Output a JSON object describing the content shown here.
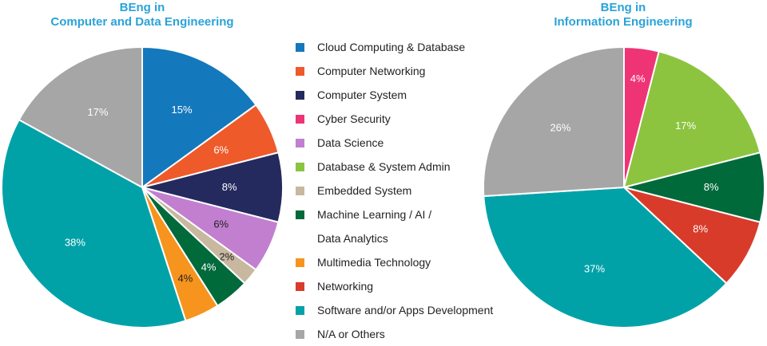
{
  "colors": {
    "cloud": "#1478bd",
    "networking_comp": "#ef5a2a",
    "system": "#252a5e",
    "cyber": "#ef3476",
    "datasci": "#c27fd0",
    "dbadmin": "#8cc43f",
    "embedded": "#c8b8a0",
    "ml": "#006a3b",
    "multimedia": "#f7941d",
    "networking": "#d93b2b",
    "software": "#00a2a8",
    "other": "#a6a6a6",
    "title": "#29a3d9"
  },
  "legend": [
    {
      "label": "Cloud Computing & Database",
      "color_key": "cloud"
    },
    {
      "label": "Computer Networking",
      "color_key": "networking_comp"
    },
    {
      "label": "Computer System",
      "color_key": "system"
    },
    {
      "label": "Cyber Security",
      "color_key": "cyber"
    },
    {
      "label": "Data Science",
      "color_key": "datasci"
    },
    {
      "label": "Database & System Admin",
      "color_key": "dbadmin"
    },
    {
      "label": "Embedded System",
      "color_key": "embedded"
    },
    {
      "label": "Machine Learning / AI /",
      "color_key": "ml"
    },
    {
      "label": "Data Analytics",
      "color_key": "ml",
      "continuation": true
    },
    {
      "label": "Multimedia Technology",
      "color_key": "multimedia"
    },
    {
      "label": "Networking",
      "color_key": "networking"
    },
    {
      "label": "Software and/or Apps Development",
      "color_key": "software"
    },
    {
      "label": "N/A or Others",
      "color_key": "other"
    }
  ],
  "chart_data": [
    {
      "type": "pie",
      "title": "BEng in Computer and Data Engineering",
      "title_lines": [
        "BEng in",
        "Computer and Data Engineering"
      ],
      "slices": [
        {
          "category": "Cloud Computing & Database",
          "value": 15,
          "label": "15%",
          "color_key": "cloud",
          "label_color": "#ffffff"
        },
        {
          "category": "Computer Networking",
          "value": 6,
          "label": "6%",
          "color_key": "networking_comp",
          "label_color": "#ffffff"
        },
        {
          "category": "Computer System",
          "value": 8,
          "label": "8%",
          "color_key": "system",
          "label_color": "#ffffff"
        },
        {
          "category": "Data Science",
          "value": 6,
          "label": "6%",
          "color_key": "datasci",
          "label_color": "#222222"
        },
        {
          "category": "Embedded System",
          "value": 2,
          "label": "2%",
          "color_key": "embedded",
          "label_color": "#222222"
        },
        {
          "category": "Machine Learning / AI / Data Analytics",
          "value": 4,
          "label": "4%",
          "color_key": "ml",
          "label_color": "#ffffff"
        },
        {
          "category": "Multimedia Technology",
          "value": 4,
          "label": "4%",
          "color_key": "multimedia",
          "label_color": "#222222"
        },
        {
          "category": "Software and/or Apps Development",
          "value": 38,
          "label": "38%",
          "color_key": "software",
          "label_color": "#ffffff"
        },
        {
          "category": "N/A or Others",
          "value": 17,
          "label": "17%",
          "color_key": "other",
          "label_color": "#ffffff"
        }
      ]
    },
    {
      "type": "pie",
      "title": "BEng in Information Engineering",
      "title_lines": [
        "BEng in",
        "Information Engineering"
      ],
      "slices": [
        {
          "category": "Cyber Security",
          "value": 4,
          "label": "4%",
          "color_key": "cyber",
          "label_color": "#ffffff"
        },
        {
          "category": "Database & System Admin",
          "value": 17,
          "label": "17%",
          "color_key": "dbadmin",
          "label_color": "#ffffff"
        },
        {
          "category": "Machine Learning / AI / Data Analytics",
          "value": 8,
          "label": "8%",
          "color_key": "ml",
          "label_color": "#ffffff"
        },
        {
          "category": "Networking",
          "value": 8,
          "label": "8%",
          "color_key": "networking",
          "label_color": "#ffffff"
        },
        {
          "category": "Software and/or Apps Development",
          "value": 37,
          "label": "37%",
          "color_key": "software",
          "label_color": "#ffffff"
        },
        {
          "category": "N/A or Others",
          "value": 26,
          "label": "26%",
          "color_key": "other",
          "label_color": "#ffffff"
        }
      ]
    }
  ]
}
